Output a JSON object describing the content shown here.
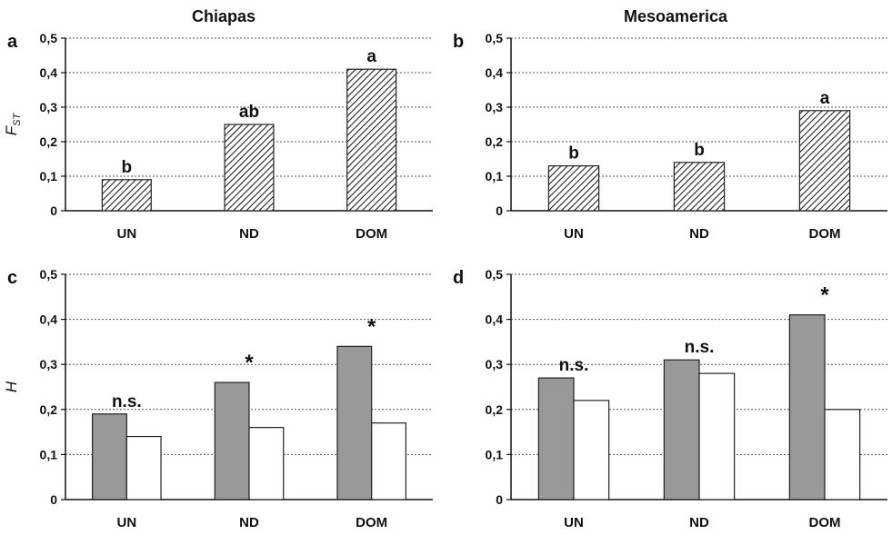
{
  "figure": {
    "column_titles": [
      "Chiapas",
      "Mesoamerica"
    ]
  },
  "chart_data": [
    {
      "panel": "a",
      "type": "bar",
      "title": "Chiapas",
      "ylabel": "F",
      "ylabel_sub": "ST",
      "ylim": [
        0,
        0.5
      ],
      "yticks": [
        "0",
        "0,1",
        "0,2",
        "0,3",
        "0,4",
        "0,5"
      ],
      "grid": true,
      "categories": [
        "UN",
        "ND",
        "DOM"
      ],
      "series": [
        {
          "values": [
            0.09,
            0.25,
            0.41
          ],
          "fill": "hatch"
        }
      ],
      "annotations": [
        "b",
        "ab",
        "a"
      ]
    },
    {
      "panel": "b",
      "type": "bar",
      "title": "Mesoamerica",
      "ylabel": "",
      "ylim": [
        0,
        0.5
      ],
      "yticks": [
        "0",
        "0,1",
        "0,2",
        "0,3",
        "0,4",
        "0,5"
      ],
      "grid": true,
      "categories": [
        "UN",
        "ND",
        "DOM"
      ],
      "series": [
        {
          "values": [
            0.13,
            0.14,
            0.29
          ],
          "fill": "hatch"
        }
      ],
      "annotations": [
        "b",
        "b",
        "a"
      ]
    },
    {
      "panel": "c",
      "type": "bar",
      "ylabel": "H",
      "ylim": [
        0,
        0.5
      ],
      "yticks": [
        "0",
        "0,1",
        "0,2",
        "0,3",
        "0,4",
        "0,5"
      ],
      "grid": true,
      "categories": [
        "UN",
        "ND",
        "DOM"
      ],
      "series": [
        {
          "values": [
            0.19,
            0.26,
            0.34
          ],
          "fill": "gray",
          "color": "#999999"
        },
        {
          "values": [
            0.14,
            0.16,
            0.17
          ],
          "fill": "white",
          "color": "#ffffff"
        }
      ],
      "annotations": [
        "n.s.",
        "*",
        "*"
      ]
    },
    {
      "panel": "d",
      "type": "bar",
      "ylabel": "",
      "ylim": [
        0,
        0.5
      ],
      "yticks": [
        "0",
        "0,1",
        "0,2",
        "0,3",
        "0,4",
        "0,5"
      ],
      "grid": true,
      "categories": [
        "UN",
        "ND",
        "DOM"
      ],
      "series": [
        {
          "values": [
            0.27,
            0.31,
            0.41
          ],
          "fill": "gray",
          "color": "#999999"
        },
        {
          "values": [
            0.22,
            0.28,
            0.2
          ],
          "fill": "white",
          "color": "#ffffff"
        }
      ],
      "annotations": [
        "n.s.",
        "n.s.",
        "*"
      ]
    }
  ]
}
